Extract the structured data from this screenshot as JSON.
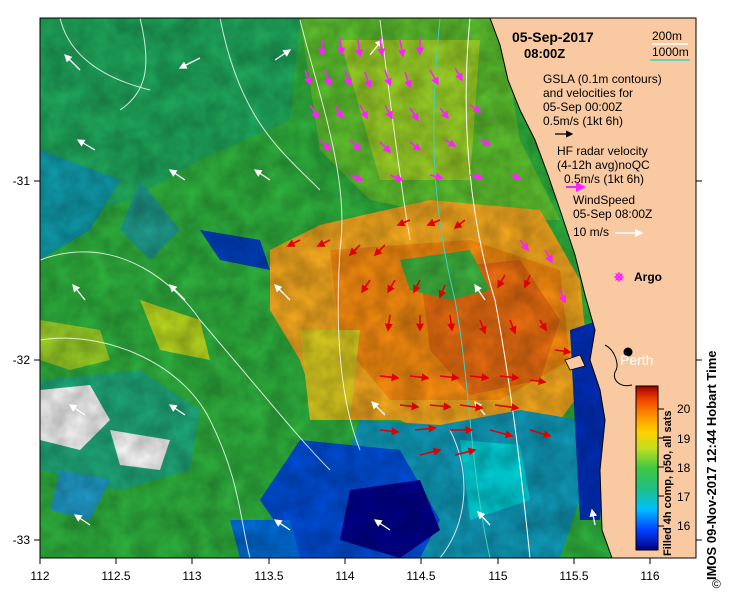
{
  "map": {
    "date": "05-Sep-2017",
    "time": "08:00Z",
    "depth_legend": {
      "short": "200m",
      "long": "1000m",
      "short_color": "#ffffff",
      "long_color": "#40d0c0"
    },
    "gsla_legend": {
      "line1": "GSLA (0.1m contours)",
      "line2": "and velocities for",
      "line3": "05-Sep 00:00Z",
      "scale": "0.5m/s (1kt 6h)"
    },
    "hf_legend": {
      "line1": "HF radar velocity",
      "line2": "(4-12h avg)noQC",
      "scale": "0.5m/s (1kt 6h)",
      "color": "#ff20ff"
    },
    "wind_legend": {
      "line1": "WindSpeed",
      "line2": "05-Sep 08:00Z",
      "scale": "10 m/s"
    },
    "argo_label": "Argo",
    "city_label": "Perth",
    "x_ticks": [
      "112",
      "112.5",
      "113",
      "113.5",
      "114",
      "114.5",
      "115",
      "115.5",
      "116"
    ],
    "y_ticks": [
      "-31",
      "-32",
      "-33"
    ],
    "credit": "IMOS 09-Nov-2017 12:44 Hobart Time",
    "copyright_symbol": "©"
  },
  "colorbar": {
    "title": "Filled 4h comp, p50, all sats",
    "ticks": [
      "20",
      "19",
      "18",
      "17",
      "16"
    ],
    "range": [
      15.2,
      20.8
    ]
  },
  "colors": {
    "land": "#f9c9a2",
    "hf_arrow": "#ff20ff",
    "radar_arrow": "#e00000"
  }
}
